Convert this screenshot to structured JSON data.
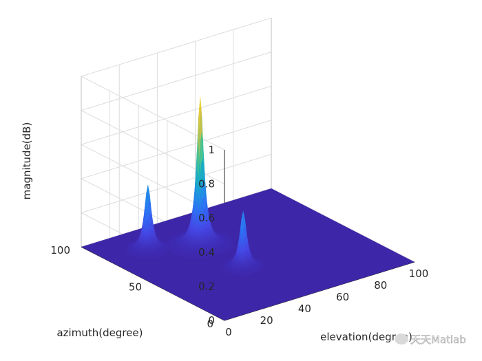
{
  "chart_data": {
    "type": "surface3d",
    "xlabel": "elevation(degree)",
    "ylabel": "azimuth(degree)",
    "zlabel": "magnitude(dB)",
    "xlim": [
      0,
      100
    ],
    "ylim": [
      0,
      100
    ],
    "zlim": [
      0,
      1
    ],
    "x_ticks": [
      "0",
      "20",
      "40",
      "60",
      "80",
      "100"
    ],
    "y_ticks": [
      "0",
      "50",
      "100"
    ],
    "z_ticks": [
      "0",
      "0.2",
      "0.4",
      "0.6",
      "0.8",
      "1"
    ],
    "grid": true,
    "colormap": "parula",
    "peaks": [
      {
        "elevation": 20,
        "azimuth": 80,
        "magnitude": 0.38
      },
      {
        "elevation": 40,
        "azimuth": 70,
        "magnitude": 0.87
      },
      {
        "elevation": 40,
        "azimuth": 40,
        "magnitude": 0.33
      }
    ]
  },
  "watermark": "天天Matlab"
}
